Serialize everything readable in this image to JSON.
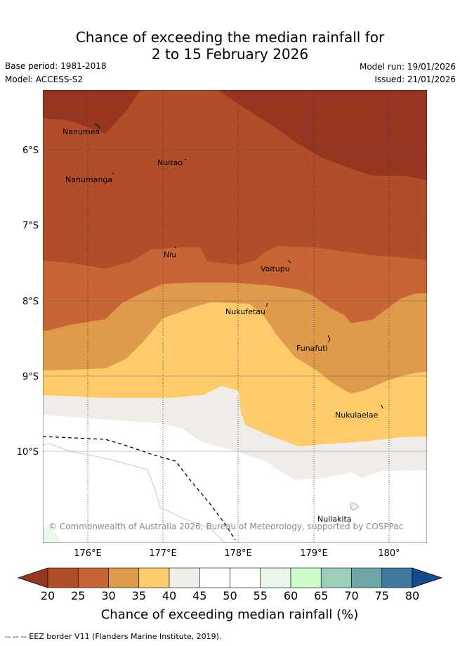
{
  "title_line1": "Chance of exceeding the median rainfall for",
  "title_line2": "2 to 15 February 2026",
  "meta": {
    "base_period": "Base period: 1981-2018",
    "model": "Model: ACCESS-S2",
    "model_run": "Model run: 19/01/2026",
    "issued": "Issued: 21/01/2026"
  },
  "map": {
    "lon_labels": [
      "176°E",
      "177°E",
      "178°E",
      "179°E",
      "180°"
    ],
    "lat_labels": [
      "6°S",
      "7°S",
      "8°S",
      "9°S",
      "10°S"
    ],
    "copyright": "© Commonwealth of Australia 2026, Bureau of Meteorology, supported by COSPPac",
    "islands": [
      "Nanumea",
      "Nuitao",
      "Nanumanga",
      "Niu",
      "Vaitupu",
      "Nukufetau",
      "Funafuti",
      "Nukulaelae",
      "Nuilakita"
    ]
  },
  "colorbar": {
    "ticks": [
      "20",
      "25",
      "30",
      "35",
      "40",
      "45",
      "50",
      "55",
      "60",
      "65",
      "70",
      "75",
      "80"
    ],
    "title": "Chance of exceeding median rainfall (%)",
    "colors": [
      "#963621",
      "#b14d28",
      "#c96535",
      "#e09a4c",
      "#fdcb6a",
      "#f0ede8",
      "#ffffff",
      "#ffffff",
      "#ebf6ea",
      "#ccfcca",
      "#9ccfba",
      "#6ea6a8",
      "#41799e",
      "#144c8d"
    ]
  },
  "footer": "-- -- -- EEZ border V11 (Flanders Marine Institute, 2019)."
}
